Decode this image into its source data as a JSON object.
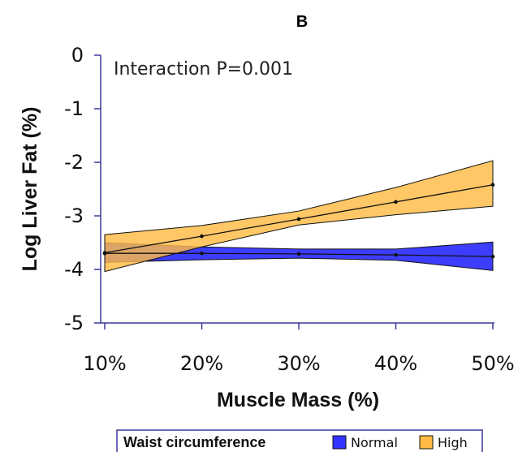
{
  "chart_data": {
    "type": "line",
    "panel_label": "B",
    "annotation": "Interaction P=0.001",
    "xlabel": "Muscle Mass (%)",
    "ylabel": "Log Liver Fat (%)",
    "x": [
      10,
      20,
      30,
      40,
      50
    ],
    "x_tick_labels": [
      "10%",
      "20%",
      "30%",
      "40%",
      "50%"
    ],
    "xlim": [
      10,
      50
    ],
    "yticks": [
      0,
      -1,
      -2,
      -3,
      -4,
      -5
    ],
    "ylim": [
      -5,
      0
    ],
    "legend": {
      "title": "Waist circumference",
      "placement": "bottom"
    },
    "series": [
      {
        "name": "Normal",
        "color": "#3333ff",
        "values": [
          -3.7,
          -3.7,
          -3.71,
          -3.73,
          -3.76
        ],
        "lower": [
          -3.87,
          -3.82,
          -3.79,
          -3.83,
          -4.02
        ],
        "upper": [
          -3.5,
          -3.58,
          -3.62,
          -3.62,
          -3.49
        ]
      },
      {
        "name": "High",
        "color": "#ffbb44",
        "values": [
          -3.69,
          -3.38,
          -3.06,
          -2.74,
          -2.42
        ],
        "lower": [
          -4.04,
          -3.58,
          -3.17,
          -2.98,
          -2.82
        ],
        "upper": [
          -3.35,
          -3.18,
          -2.91,
          -2.47,
          -1.97
        ]
      }
    ]
  }
}
